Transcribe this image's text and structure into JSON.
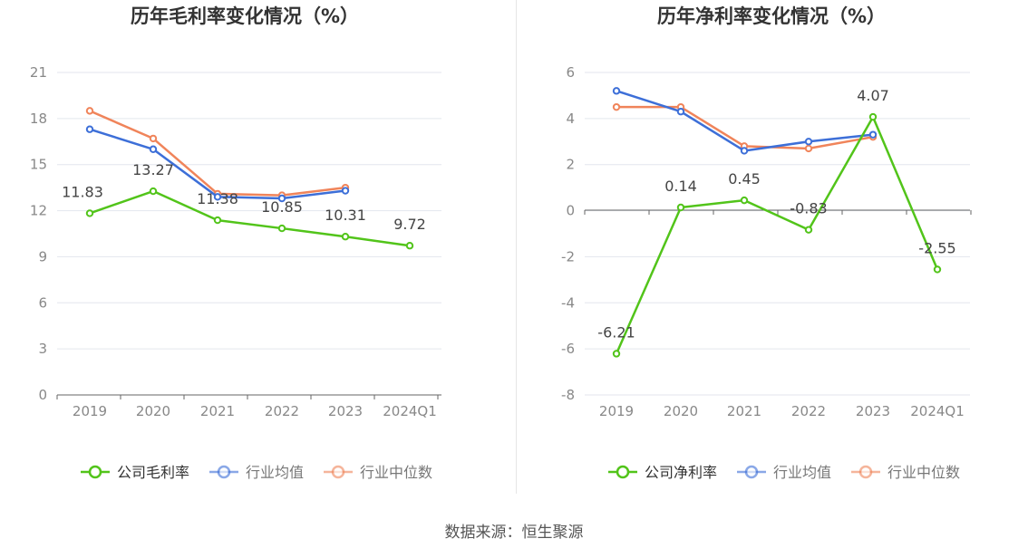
{
  "source_text": "数据来源：恒生聚源",
  "colors": {
    "company": "#52c41a",
    "industry_avg": "#3d6fd8",
    "industry_median": "#f0845a",
    "grid": "#e3e6ee",
    "axis": "#666666",
    "tick_label": "#888888",
    "data_label": "#444444",
    "title": "#333333"
  },
  "chart_data": [
    {
      "type": "line",
      "title": "历年毛利率变化情况（%）",
      "categories": [
        "2019",
        "2020",
        "2021",
        "2022",
        "2023",
        "2024Q1"
      ],
      "ylim": [
        0,
        21
      ],
      "yticks": [
        0,
        3,
        6,
        9,
        12,
        15,
        18,
        21
      ],
      "grid": true,
      "legend_position": "bottom",
      "series": [
        {
          "name": "公司毛利率",
          "color_key": "company",
          "values": [
            11.83,
            13.27,
            11.38,
            10.85,
            10.31,
            9.72
          ],
          "labels": [
            "11.83",
            "13.27",
            "11.38",
            "10.85",
            "10.31",
            "9.72"
          ]
        },
        {
          "name": "行业均值",
          "color_key": "industry_avg",
          "values": [
            17.3,
            16.0,
            12.9,
            12.8,
            13.3,
            null
          ]
        },
        {
          "name": "行业中位数",
          "color_key": "industry_median",
          "values": [
            18.5,
            16.7,
            13.1,
            13.0,
            13.5,
            null
          ]
        }
      ]
    },
    {
      "type": "line",
      "title": "历年净利率变化情况（%）",
      "categories": [
        "2019",
        "2020",
        "2021",
        "2022",
        "2023",
        "2024Q1"
      ],
      "ylim": [
        -8,
        6
      ],
      "yticks": [
        -8,
        -6,
        -4,
        -2,
        0,
        2,
        4,
        6
      ],
      "grid": true,
      "legend_position": "bottom",
      "series": [
        {
          "name": "公司净利率",
          "color_key": "company",
          "values": [
            -6.21,
            0.14,
            0.45,
            -0.83,
            4.07,
            -2.55
          ],
          "labels": [
            "-6.21",
            "0.14",
            "0.45",
            "-0.83",
            "4.07",
            "-2.55"
          ]
        },
        {
          "name": "行业均值",
          "color_key": "industry_avg",
          "values": [
            5.2,
            4.3,
            2.6,
            3.0,
            3.3,
            null
          ]
        },
        {
          "name": "行业中位数",
          "color_key": "industry_median",
          "values": [
            4.5,
            4.5,
            2.8,
            2.7,
            3.2,
            null
          ]
        }
      ]
    }
  ]
}
